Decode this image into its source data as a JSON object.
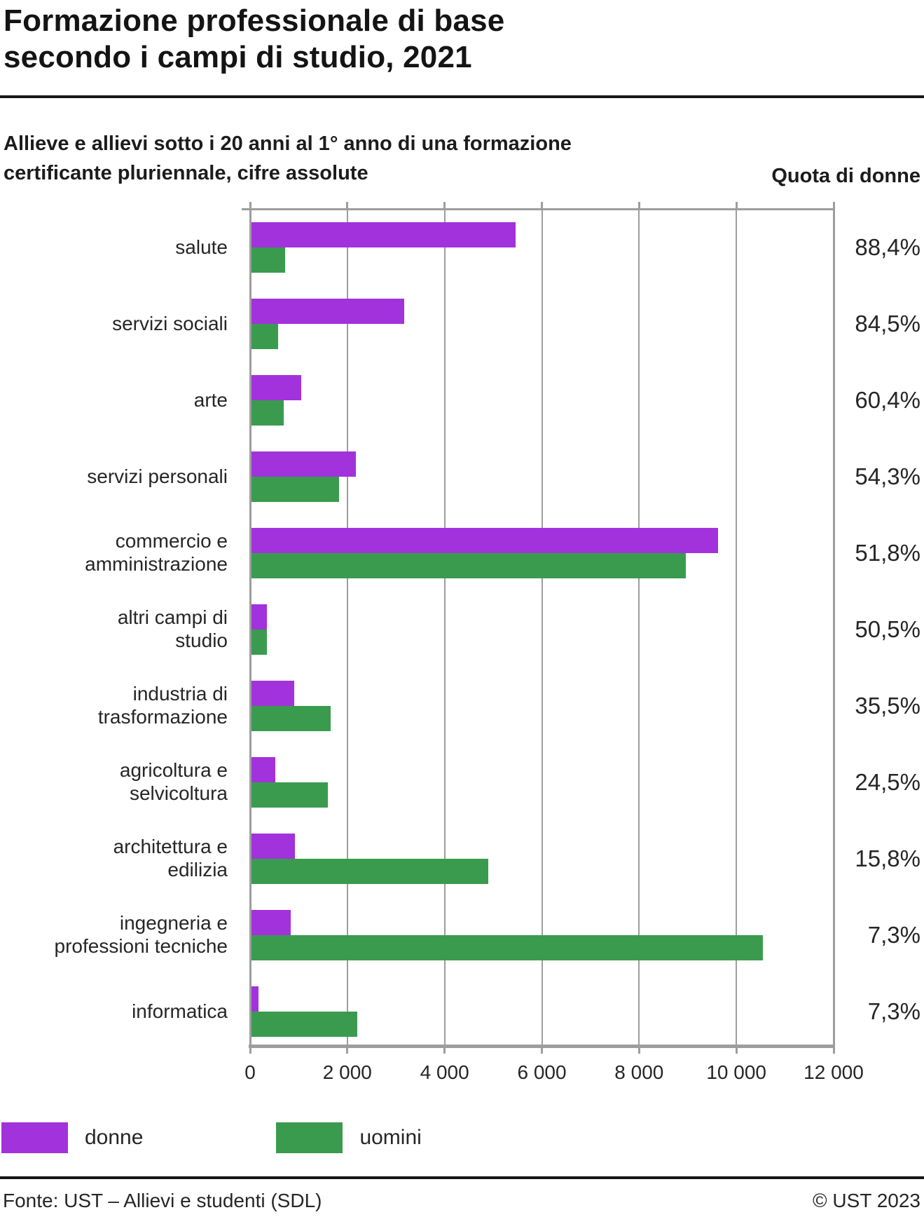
{
  "header": {
    "title_line1": "Formazione professionale di base",
    "title_line2": "secondo i campi di studio, 2021",
    "subtitle_line1": "Allieve e allievi sotto i 20 anni al 1° anno di una formazione",
    "subtitle_line2": "certificante pluriennale, cifre assolute",
    "right_column_header": "Quota di donne"
  },
  "chart_data": {
    "type": "bar",
    "orientation": "horizontal",
    "title": "Formazione professionale di base secondo i campi di studio, 2021",
    "xlabel": "",
    "ylabel": "",
    "xlim": [
      0,
      12000
    ],
    "x_ticks": [
      0,
      2000,
      4000,
      6000,
      8000,
      10000,
      12000
    ],
    "x_tick_labels": [
      "0",
      "2 000",
      "4 000",
      "6 000",
      "8 000",
      "10 000",
      "12 000"
    ],
    "grid": "vertical",
    "legend_position": "bottom-left",
    "categories": [
      "salute",
      "servizi sociali",
      "arte",
      "servizi personali",
      "commercio e amministrazione",
      "altri campi di studio",
      "industria di trasformazione",
      "agricoltura e selvicoltura",
      "architettura e edilizia",
      "ingegneria e professioni tecniche",
      "informatica"
    ],
    "category_display_lines": [
      [
        "salute"
      ],
      [
        "servizi sociali"
      ],
      [
        "arte"
      ],
      [
        "servizi personali"
      ],
      [
        "commercio e",
        "amministrazione"
      ],
      [
        "altri campi di",
        "studio"
      ],
      [
        "industria di",
        "trasformazione"
      ],
      [
        "agricoltura e",
        "selvicoltura"
      ],
      [
        "architettura e",
        "edilizia"
      ],
      [
        "ingegneria e",
        "professioni tecniche"
      ],
      [
        "informatica"
      ]
    ],
    "series": [
      {
        "name": "donne",
        "color": "#a232dc",
        "values": [
          5460,
          3170,
          1050,
          2180,
          9630,
          350,
          910,
          520,
          920,
          830,
          170
        ]
      },
      {
        "name": "uomini",
        "color": "#3a9b4f",
        "values": [
          720,
          580,
          690,
          1835,
          8960,
          345,
          1655,
          1600,
          4900,
          10540,
          2200
        ]
      }
    ],
    "quota_di_donne_labels": [
      "88,4%",
      "84,5%",
      "60,4%",
      "54,3%",
      "51,8%",
      "50,5%",
      "35,5%",
      "24,5%",
      "15,8%",
      "7,3%",
      "7,3%"
    ]
  },
  "legend": {
    "items": [
      {
        "label": "donne",
        "color": "#a232dc"
      },
      {
        "label": "uomini",
        "color": "#3a9b4f"
      }
    ]
  },
  "footer": {
    "source": "Fonte: UST – Allievi e studenti (SDL)",
    "copyright": "© UST 2023"
  }
}
